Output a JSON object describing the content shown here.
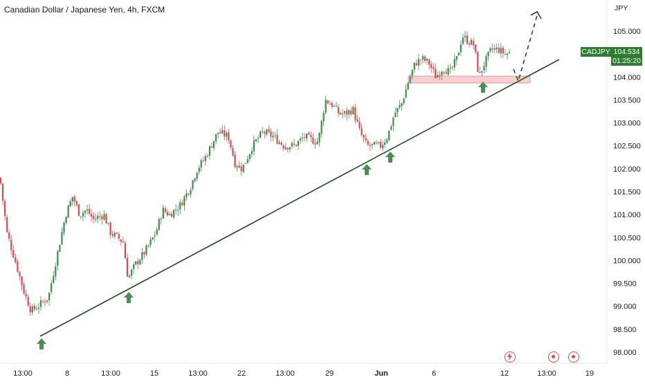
{
  "chart": {
    "title": "Canadian Dollar / Japanese Yen, 4h, FXCM",
    "currency": "JPY",
    "symbol": "CADJPY",
    "last_price": "104.534",
    "countdown": "01:25:20",
    "y_ticks": [
      "105.000",
      "104.500",
      "104.000",
      "103.500",
      "103.000",
      "102.500",
      "102.000",
      "101.500",
      "101.000",
      "100.500",
      "100.000",
      "99.500",
      "99.000",
      "98.500",
      "98.000"
    ],
    "x_ticks": [
      "13:00",
      "8",
      "13:00",
      "15",
      "13:00",
      "22",
      "13:00",
      "29",
      "Jun",
      "6",
      "12",
      "13:00",
      "19"
    ],
    "colors": {
      "up": "#3a8c4a",
      "down": "#e0474c",
      "trendline": "#1b4d1b",
      "zone": "#f2b8bb",
      "arrow": "#4e8c55",
      "tag": "#2e7d32"
    },
    "icons": [
      "flash-event-icon",
      "event-marker-icon",
      "event-marker-icon"
    ]
  },
  "chart_data": {
    "type": "candlestick",
    "ylim": [
      98.0,
      105.2
    ],
    "series_note": "",
    "candles": []
  }
}
